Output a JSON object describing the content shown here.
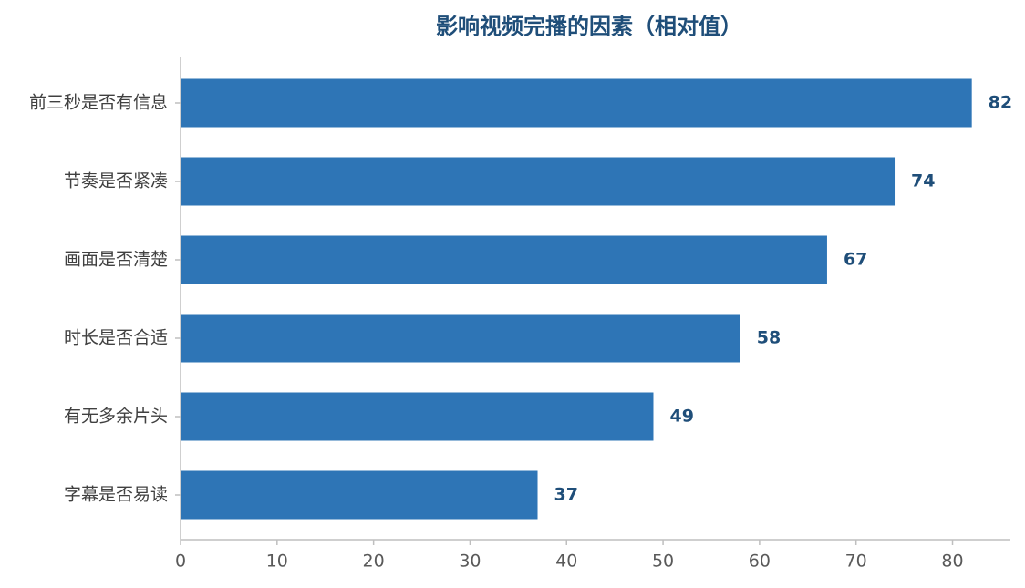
{
  "chart_data": {
    "type": "barh",
    "title": "影响视频完播的因素（相对值）",
    "categories": [
      "前三秒是否有信息",
      "节奏是否紧凑",
      "画面是否清楚",
      "时长是否合适",
      "有无多余片头",
      "字幕是否易读"
    ],
    "values": [
      82,
      74,
      67,
      58,
      49,
      37
    ],
    "color": "#2e75b6",
    "xlim": [
      0,
      86
    ],
    "xticks": [
      0,
      10,
      20,
      30,
      40,
      50,
      60,
      70,
      80
    ],
    "grid": false
  }
}
